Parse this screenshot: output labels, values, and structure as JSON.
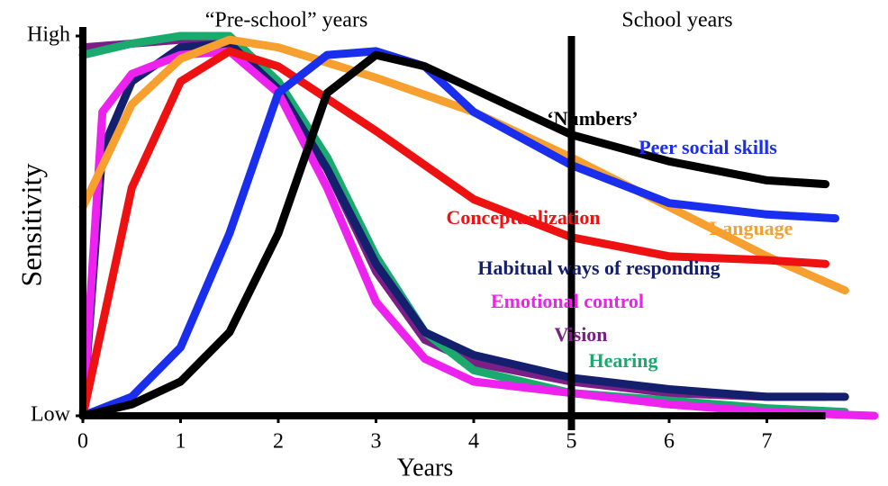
{
  "chart_data": {
    "type": "line",
    "xlabel": "Years",
    "ylabel": "Sensitivity",
    "annotations": [
      "“Pre-school” years",
      "School years"
    ],
    "vline": 5,
    "xlim": [
      0,
      8.2
    ],
    "xticks": [
      0,
      1,
      2,
      3,
      4,
      5,
      6,
      7
    ],
    "ylim": [
      0,
      100
    ],
    "yticks": [
      {
        "value": 0,
        "label": "Low"
      },
      {
        "value": 100,
        "label": "High"
      }
    ],
    "series": [
      {
        "name": "Vision",
        "color": "#7b1f86",
        "x": [
          0,
          1,
          1.5,
          2,
          2.5,
          3,
          3.5,
          4,
          5,
          6,
          7,
          7.6
        ],
        "values": [
          97,
          99,
          99,
          85,
          65,
          38,
          20,
          14,
          9,
          6,
          5,
          5
        ]
      },
      {
        "name": "Hearing",
        "color": "#1aaa6e",
        "x": [
          0,
          0.5,
          1,
          1.5,
          2,
          2.5,
          3,
          3.5,
          4,
          5,
          6,
          7,
          7.8
        ],
        "values": [
          95,
          98,
          100,
          100,
          88,
          68,
          42,
          22,
          12,
          6,
          4,
          2,
          1
        ]
      },
      {
        "name": "Habitual ways of responding",
        "color": "#14206e",
        "x": [
          0,
          0.2,
          0.5,
          1,
          1.5,
          2,
          2.5,
          3,
          3.5,
          4,
          5,
          6,
          7,
          7.8
        ],
        "values": [
          0,
          70,
          88,
          97,
          98,
          86,
          65,
          40,
          22,
          16,
          10,
          7,
          5,
          5
        ]
      },
      {
        "name": "Emotional control",
        "color": "#ee22ee",
        "x": [
          0,
          0.2,
          0.5,
          1,
          1.5,
          2,
          2.5,
          3,
          3.5,
          4,
          5,
          6,
          7,
          8.1
        ],
        "values": [
          0,
          80,
          90,
          95,
          96,
          85,
          60,
          30,
          15,
          9,
          6,
          3,
          1,
          0
        ]
      },
      {
        "name": "Language",
        "color": "#f7a030",
        "x": [
          0,
          0.5,
          1,
          1.5,
          2,
          3,
          4,
          5,
          6,
          7,
          7.8
        ],
        "values": [
          55,
          82,
          94,
          99,
          97,
          89,
          80,
          68,
          55,
          42,
          33
        ]
      },
      {
        "name": "Conceptualization",
        "color": "#ee1111",
        "x": [
          0,
          0.5,
          1,
          1.5,
          2,
          3,
          4,
          5,
          6,
          7,
          7.6
        ],
        "values": [
          0,
          60,
          88,
          96,
          92,
          75,
          57,
          47,
          42,
          41,
          40
        ]
      },
      {
        "name": "Peer social skills",
        "color": "#1a2eee",
        "x": [
          0,
          0.5,
          1,
          1.5,
          2,
          2.5,
          3,
          3.5,
          4,
          5,
          6,
          7,
          7.7
        ],
        "values": [
          0,
          5,
          18,
          48,
          85,
          95,
          96,
          92,
          80,
          66,
          56,
          53,
          52
        ]
      },
      {
        "name": "‘Numbers’",
        "color": "#000000",
        "x": [
          0,
          0.5,
          1,
          1.5,
          2,
          2.5,
          3,
          3.5,
          4,
          5,
          6,
          7,
          7.6
        ],
        "values": [
          0,
          3,
          9,
          22,
          48,
          85,
          95,
          92,
          86,
          74,
          67,
          62,
          61
        ]
      }
    ]
  }
}
